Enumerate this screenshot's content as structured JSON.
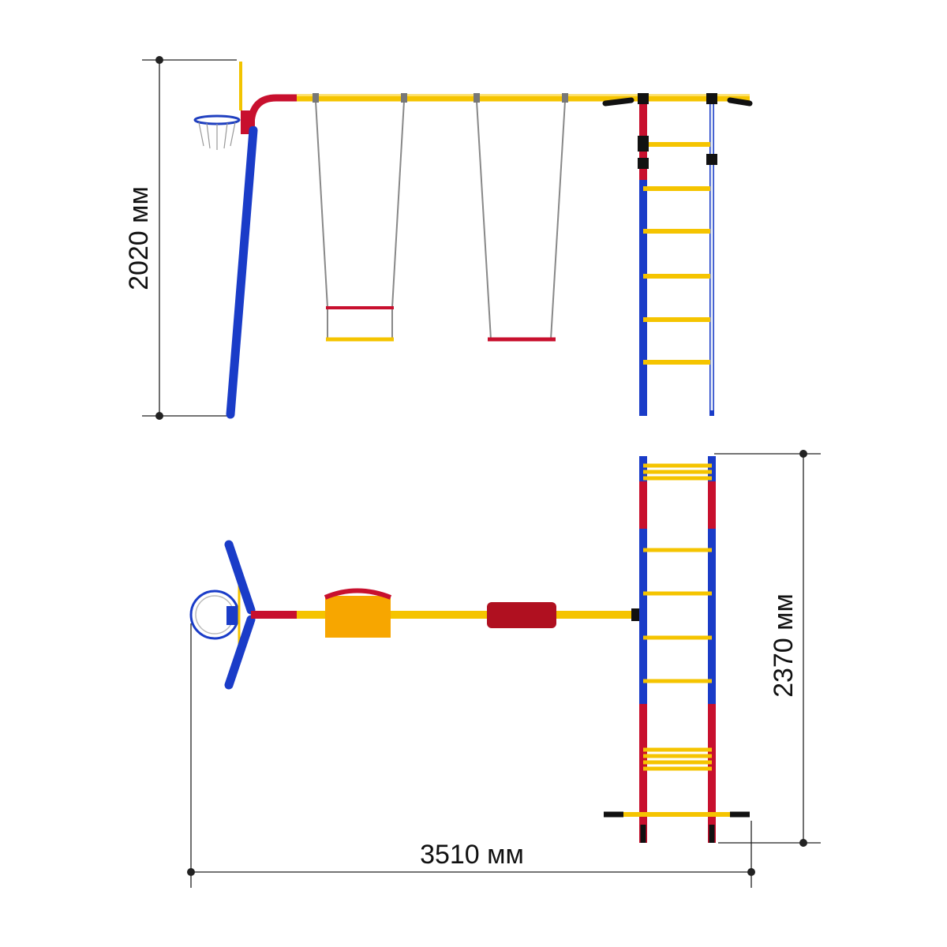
{
  "dimensions": {
    "height": "2020 мм",
    "depth": "2370 мм",
    "length": "3510 мм"
  }
}
